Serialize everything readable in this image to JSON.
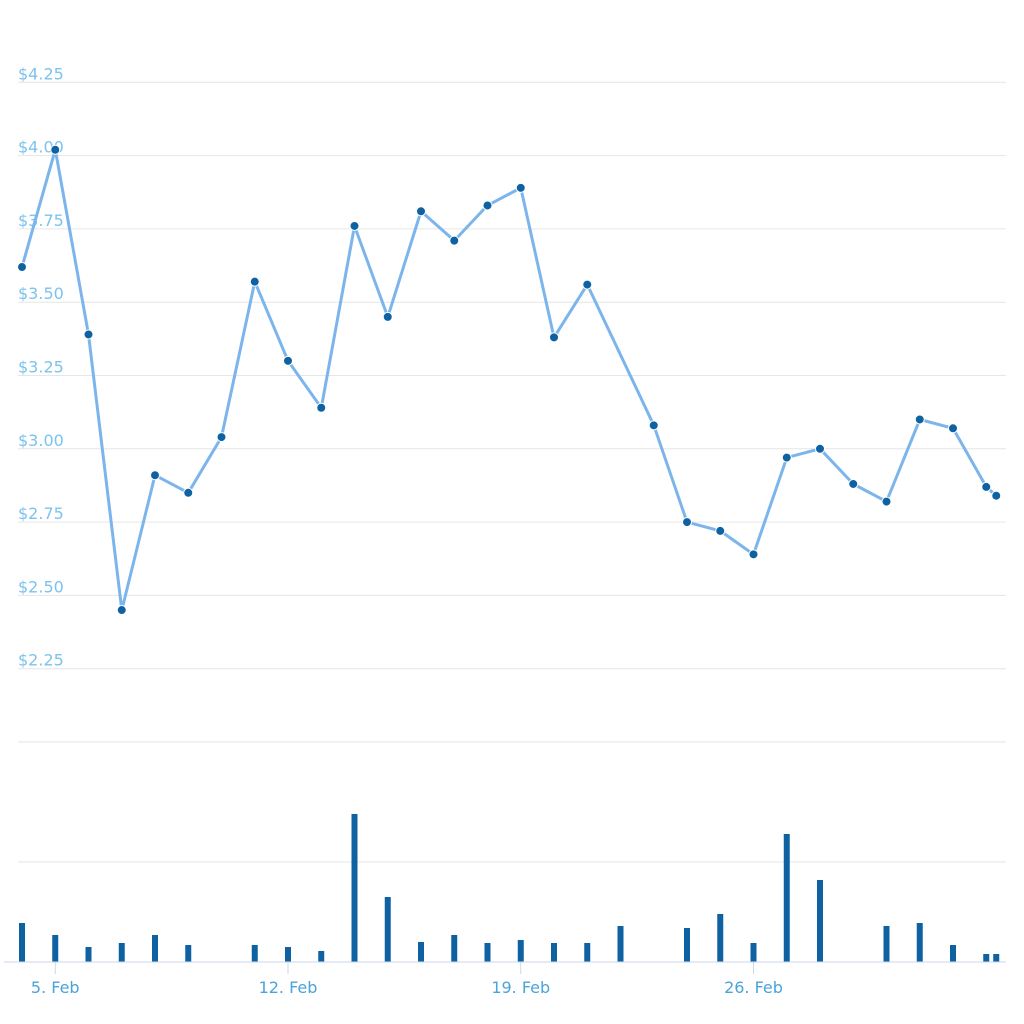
{
  "chart_data": [
    {
      "type": "line",
      "ylim": [
        2.0,
        4.5
      ],
      "y_ticks": [
        2.25,
        2.5,
        2.75,
        3.0,
        3.25,
        3.5,
        3.75,
        4.0,
        4.25
      ],
      "y_tick_labels": [
        "$2.25",
        "$2.50",
        "$2.75",
        "$3.00",
        "$3.25",
        "$3.50",
        "$3.75",
        "$4.00",
        "$4.25"
      ],
      "grid": true,
      "colors": {
        "line": "#7cb5ec",
        "marker": "#0f62a2",
        "tick_label": "#7cc3ec"
      },
      "x": [
        "2018-02-04",
        "2018-02-05",
        "2018-02-06",
        "2018-02-07",
        "2018-02-08",
        "2018-02-09",
        "2018-02-10",
        "2018-02-11",
        "2018-02-12",
        "2018-02-13",
        "2018-02-14",
        "2018-02-15",
        "2018-02-16",
        "2018-02-17",
        "2018-02-18",
        "2018-02-19",
        "2018-02-20",
        "2018-02-21",
        "2018-02-23",
        "2018-02-24",
        "2018-02-25",
        "2018-02-26",
        "2018-02-27",
        "2018-02-28",
        "2018-03-01",
        "2018-03-02",
        "2018-03-03",
        "2018-03-04"
      ],
      "values": [
        3.62,
        4.02,
        3.39,
        2.45,
        2.91,
        2.85,
        3.04,
        3.57,
        3.3,
        3.14,
        3.76,
        3.45,
        3.81,
        3.71,
        3.83,
        3.89,
        3.38,
        3.56,
        3.08,
        2.75,
        2.72,
        2.64,
        2.97,
        3.0,
        2.88,
        2.82,
        3.1,
        3.07
      ],
      "trailing": {
        "x": [
          "2018-03-05",
          "2018-03-05"
        ],
        "values": [
          2.87,
          2.84
        ]
      }
    },
    {
      "type": "bar",
      "colors": {
        "bar": "#0f62a2"
      },
      "x": [
        "2018-02-04",
        "2018-02-05",
        "2018-02-06",
        "2018-02-07",
        "2018-02-08",
        "2018-02-09",
        "2018-02-11",
        "2018-02-12",
        "2018-02-13",
        "2018-02-14",
        "2018-02-15",
        "2018-02-16",
        "2018-02-17",
        "2018-02-18",
        "2018-02-19",
        "2018-02-20",
        "2018-02-21",
        "2018-02-22",
        "2018-02-24",
        "2018-02-25",
        "2018-02-26",
        "2018-02-27",
        "2018-02-28",
        "2018-03-02",
        "2018-03-03",
        "2018-03-04",
        "2018-03-05",
        "2018-03-05"
      ],
      "values": [
        39,
        27,
        15,
        19,
        27,
        17,
        17,
        15,
        11,
        148,
        65,
        20,
        27,
        19,
        22,
        19,
        19,
        36,
        34,
        48,
        19,
        128,
        82,
        36,
        39,
        17,
        8,
        8
      ],
      "ylim": [
        0,
        220
      ],
      "grid": true,
      "x_ticks": [
        "2018-02-05",
        "2018-02-12",
        "2018-02-19",
        "2018-02-26"
      ],
      "x_tick_labels": [
        "5. Feb",
        "12. Feb",
        "19. Feb",
        "26. Feb"
      ]
    }
  ]
}
